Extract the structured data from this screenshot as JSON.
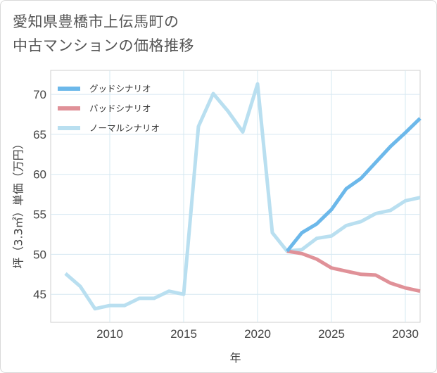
{
  "title": "愛知県豊橋市上伝馬町の\n中古マンションの価格推移",
  "chart_data": {
    "type": "line",
    "xlabel": "年",
    "ylabel": "坪（3.3㎡）単価（万円）",
    "xlim": [
      2006,
      2031
    ],
    "ylim": [
      41.5,
      73
    ],
    "xticks": [
      2010,
      2015,
      2020,
      2025,
      2030
    ],
    "yticks": [
      45,
      50,
      55,
      60,
      65,
      70
    ],
    "grid": true,
    "legend_position": "top-left",
    "series": [
      {
        "name": "グッドシナリオ",
        "color": "#6cb8ea",
        "x": [
          2022,
          2023,
          2024,
          2025,
          2026,
          2027,
          2028,
          2029,
          2030,
          2031
        ],
        "values": [
          50.4,
          52.7,
          53.8,
          55.6,
          58.2,
          59.5,
          61.5,
          63.5,
          65.2,
          67.0
        ]
      },
      {
        "name": "バッドシナリオ",
        "color": "#e09198",
        "x": [
          2022,
          2023,
          2024,
          2025,
          2026,
          2027,
          2028,
          2029,
          2030,
          2031
        ],
        "values": [
          50.4,
          50.1,
          49.4,
          48.3,
          47.9,
          47.5,
          47.4,
          46.4,
          45.8,
          45.4
        ]
      },
      {
        "name": "ノーマルシナリオ",
        "color": "#b9dff0",
        "x": [
          2007,
          2008,
          2009,
          2010,
          2011,
          2012,
          2013,
          2014,
          2015,
          2016,
          2017,
          2018,
          2019,
          2020,
          2021,
          2022,
          2023,
          2024,
          2025,
          2026,
          2027,
          2028,
          2029,
          2030,
          2031
        ],
        "values": [
          47.6,
          46.0,
          43.2,
          43.6,
          43.6,
          44.5,
          44.5,
          45.4,
          45.0,
          66.0,
          70.1,
          67.9,
          65.3,
          71.3,
          52.7,
          50.4,
          50.6,
          52.0,
          52.3,
          53.6,
          54.1,
          55.1,
          55.5,
          56.7,
          57.1
        ]
      }
    ]
  }
}
